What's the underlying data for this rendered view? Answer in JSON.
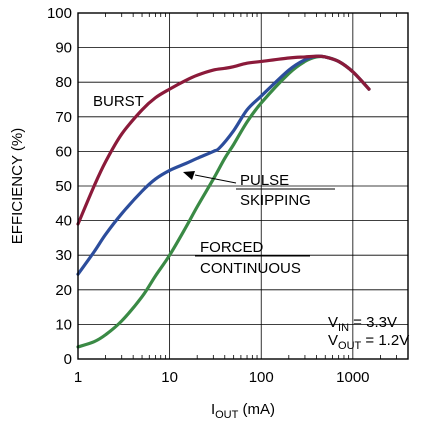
{
  "chart_data": {
    "type": "line",
    "x_scale": "log",
    "xlim": [
      1,
      4000
    ],
    "ylim": [
      0,
      100
    ],
    "x_ticks": [
      1,
      10,
      100,
      1000
    ],
    "x_tick_labels": [
      "1",
      "10",
      "100",
      "1000"
    ],
    "y_ticks": [
      0,
      10,
      20,
      30,
      40,
      50,
      60,
      70,
      80,
      90,
      100
    ],
    "y_tick_labels": [
      "0",
      "10",
      "20",
      "30",
      "40",
      "50",
      "60",
      "70",
      "80",
      "90",
      "100"
    ],
    "xlabel": {
      "main": "I",
      "sub": "OUT",
      "rest": " (mA)"
    },
    "ylabel": "EFFICIENCY (%)",
    "grid": true,
    "series": [
      {
        "name": "BURST",
        "color": "#8b1a3a",
        "points": [
          [
            1,
            39
          ],
          [
            1.5,
            50
          ],
          [
            2,
            57
          ],
          [
            3,
            65
          ],
          [
            5,
            72
          ],
          [
            7,
            75.5
          ],
          [
            10,
            78
          ],
          [
            15,
            80.5
          ],
          [
            20,
            82
          ],
          [
            30,
            83.5
          ],
          [
            40,
            84
          ],
          [
            50,
            84.5
          ],
          [
            70,
            85.5
          ],
          [
            100,
            86
          ],
          [
            200,
            87
          ],
          [
            300,
            87.3
          ],
          [
            400,
            87.5
          ],
          [
            500,
            87.3
          ],
          [
            700,
            86
          ],
          [
            1000,
            83
          ],
          [
            1500,
            78
          ]
        ]
      },
      {
        "name": "PULSE SKIPPING",
        "color": "#2c4d9c",
        "points": [
          [
            1,
            24.5
          ],
          [
            1.5,
            31
          ],
          [
            2,
            36
          ],
          [
            3,
            42
          ],
          [
            5,
            48.5
          ],
          [
            7,
            52
          ],
          [
            10,
            54.5
          ],
          [
            15,
            56.5
          ],
          [
            20,
            58
          ],
          [
            30,
            60
          ],
          [
            35,
            61
          ],
          [
            50,
            66
          ],
          [
            70,
            72
          ],
          [
            100,
            76
          ],
          [
            200,
            83.5
          ],
          [
            300,
            86.5
          ],
          [
            400,
            87.5
          ],
          [
            500,
            87.3
          ],
          [
            700,
            86
          ],
          [
            1000,
            83
          ],
          [
            1500,
            78
          ]
        ]
      },
      {
        "name": "FORCED CONTINUOUS",
        "color": "#3a8a45",
        "points": [
          [
            1,
            3.5
          ],
          [
            1.5,
            5
          ],
          [
            2,
            7
          ],
          [
            3,
            11
          ],
          [
            5,
            18
          ],
          [
            7,
            24
          ],
          [
            10,
            30
          ],
          [
            15,
            38
          ],
          [
            20,
            44
          ],
          [
            30,
            52
          ],
          [
            40,
            58
          ],
          [
            50,
            62
          ],
          [
            70,
            68.5
          ],
          [
            100,
            74
          ],
          [
            200,
            82.5
          ],
          [
            300,
            86
          ],
          [
            400,
            87.3
          ],
          [
            500,
            87.3
          ],
          [
            700,
            86
          ],
          [
            1000,
            83
          ],
          [
            1500,
            78
          ]
        ]
      }
    ],
    "annotations": {
      "burst": "BURST",
      "pulse_line1": "PULSE",
      "pulse_line2": "SKIPPING",
      "forced_line1": "FORCED",
      "forced_line2": "CONTINUOUS",
      "vin": {
        "main": "V",
        "sub": "IN",
        "rest": " = 3.3V"
      },
      "vout": {
        "main": "V",
        "sub": "OUT",
        "rest": " = 1.2V"
      }
    }
  }
}
